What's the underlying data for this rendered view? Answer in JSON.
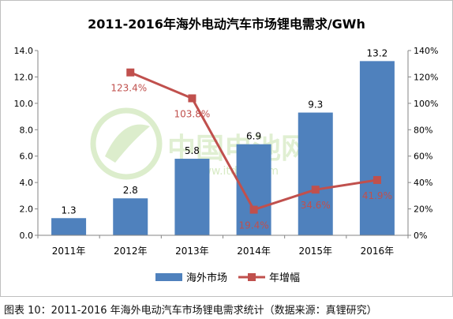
{
  "caption": "图表 10：2011-2016 年海外电动汽车市场锂电需求统计（数据来源：真锂研究）",
  "watermark": {
    "text": "中国电池网",
    "url": "www.itdcw.com",
    "color": "#9ccc6e"
  },
  "chart_data": {
    "type": "bar",
    "title": "2011-2016年海外电动汽车市场锂电需求/GWh",
    "categories": [
      "2011年",
      "2012年",
      "2013年",
      "2014年",
      "2015年",
      "2016年"
    ],
    "series": [
      {
        "name": "海外市场",
        "type": "bar",
        "axis": "left",
        "color": "#4f81bd",
        "values": [
          1.3,
          2.8,
          5.8,
          6.9,
          9.3,
          13.2
        ],
        "labels": [
          "1.3",
          "2.8",
          "5.8",
          "6.9",
          "9.3",
          "13.2"
        ]
      },
      {
        "name": "年增幅",
        "type": "line",
        "axis": "right",
        "color": "#c0504d",
        "values": [
          null,
          123.4,
          103.8,
          19.4,
          34.6,
          41.9
        ],
        "labels": [
          "",
          "123.4%",
          "103.8%",
          "19.4%",
          "34.6%",
          "41.9%"
        ]
      }
    ],
    "y_left": {
      "min": 0,
      "max": 14,
      "ticks": [
        "0.0",
        "2.0",
        "4.0",
        "6.0",
        "8.0",
        "10.0",
        "12.0",
        "14.0"
      ]
    },
    "y_right": {
      "min": 0,
      "max": 140,
      "ticks": [
        "0%",
        "20%",
        "40%",
        "60%",
        "80%",
        "100%",
        "120%",
        "140%"
      ]
    },
    "grid": false,
    "legend": "bottom"
  }
}
